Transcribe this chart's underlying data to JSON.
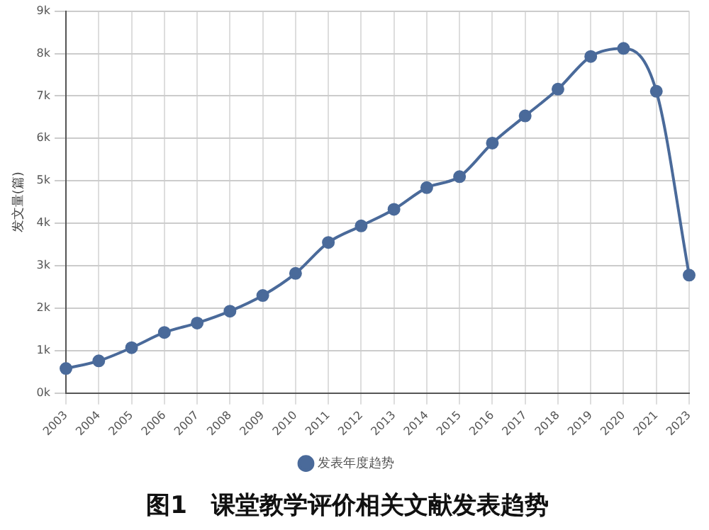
{
  "chart_data": {
    "type": "line",
    "title": "图1　课堂教学评价相关文献发表趋势",
    "ylabel": "发文量(篇)",
    "categories": [
      "2003",
      "2004",
      "2005",
      "2006",
      "2007",
      "2008",
      "2009",
      "2010",
      "2011",
      "2012",
      "2013",
      "2014",
      "2015",
      "2016",
      "2017",
      "2018",
      "2019",
      "2020",
      "2021",
      "2023"
    ],
    "series": [
      {
        "name": "发表年度趋势",
        "color": "#4a6a9a",
        "values": [
          580,
          760,
          1070,
          1430,
          1650,
          1930,
          2300,
          2820,
          3550,
          3940,
          4330,
          4840,
          5100,
          5890,
          6530,
          7160,
          7930,
          8120,
          7110,
          2780
        ]
      }
    ],
    "ylim": [
      0,
      9000
    ],
    "yticks": [
      {
        "value": 0,
        "label": "0k"
      },
      {
        "value": 1000,
        "label": "1k"
      },
      {
        "value": 2000,
        "label": "2k"
      },
      {
        "value": 3000,
        "label": "3k"
      },
      {
        "value": 4000,
        "label": "4k"
      },
      {
        "value": 5000,
        "label": "5k"
      },
      {
        "value": 6000,
        "label": "6k"
      },
      {
        "value": 7000,
        "label": "7k"
      },
      {
        "value": 8000,
        "label": "8k"
      },
      {
        "value": 9000,
        "label": "9k"
      }
    ],
    "grid": true,
    "legend": "bottom",
    "marker": "circle",
    "line_style": "solid"
  }
}
